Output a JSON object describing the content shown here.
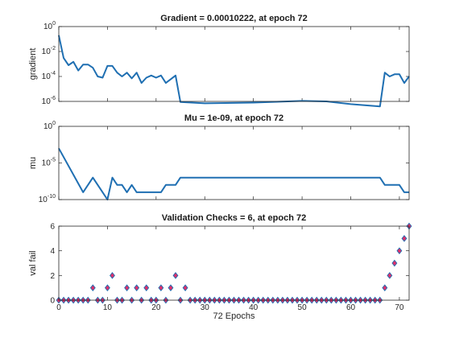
{
  "chart_data": [
    {
      "type": "line",
      "title": "Gradient = 0.00010222, at epoch 72",
      "xlabel": "",
      "ylabel": "gradient",
      "yscale": "log",
      "xlim": [
        0,
        72
      ],
      "ylim_exp": [
        -6,
        0
      ],
      "ytick_exponents": [
        0,
        -2,
        -4,
        -6
      ],
      "color": "#1f6fb2",
      "series": [
        {
          "x": [
            0,
            1,
            2,
            3,
            4,
            5,
            6,
            7,
            8,
            9,
            10,
            11,
            12,
            13,
            14,
            15,
            16,
            17,
            18,
            19,
            20,
            21,
            22,
            23,
            24,
            25,
            30,
            40,
            50,
            55,
            60,
            66,
            67,
            68,
            69,
            70,
            71,
            72
          ],
          "y": [
            0.2,
            0.003,
            0.0008,
            0.0015,
            0.0003,
            0.0009,
            0.0009,
            0.0005,
            0.0001,
            8e-05,
            0.0007,
            0.0007,
            0.0002,
            0.0001,
            0.0002,
            7e-05,
            0.0002,
            3e-05,
            8e-05,
            0.00012,
            8e-05,
            0.00012,
            3e-05,
            6e-05,
            0.00012,
            9e-07,
            7e-07,
            8e-07,
            1.1e-06,
            1e-06,
            6e-07,
            4e-07,
            0.0002,
            0.0001,
            0.00015,
            0.00015,
            3e-05,
            0.00010222
          ]
        }
      ]
    },
    {
      "type": "line",
      "title": "Mu = 1e-09, at epoch 72",
      "xlabel": "",
      "ylabel": "mu",
      "yscale": "log",
      "xlim": [
        0,
        72
      ],
      "ylim_exp": [
        -10,
        0
      ],
      "ytick_exponents": [
        0,
        -5,
        -10
      ],
      "color": "#1f6fb2",
      "series": [
        {
          "x": [
            0,
            5,
            7,
            10,
            11,
            12,
            13,
            14,
            15,
            16,
            17,
            18,
            19,
            20,
            21,
            22,
            23,
            24,
            25,
            30,
            40,
            50,
            60,
            65,
            66,
            67,
            68,
            69,
            70,
            71,
            72
          ],
          "y": [
            0.001,
            1e-09,
            1e-07,
            1e-10,
            1e-07,
            1e-08,
            1e-08,
            1e-09,
            1e-08,
            1e-09,
            1e-09,
            1e-09,
            1e-09,
            1e-09,
            1e-09,
            1e-08,
            1e-08,
            1e-08,
            1e-07,
            1e-07,
            1e-07,
            1e-07,
            1e-07,
            1e-07,
            1e-07,
            1e-08,
            1e-08,
            1e-08,
            1e-08,
            1e-09,
            1e-09
          ]
        }
      ]
    },
    {
      "type": "scatter",
      "title": "Validation Checks = 6, at epoch 72",
      "xlabel": "72 Epochs",
      "ylabel": "val fail",
      "xlim": [
        0,
        72
      ],
      "ylim": [
        0,
        6
      ],
      "xticks": [
        0,
        10,
        20,
        30,
        40,
        50,
        60,
        70
      ],
      "yticks": [
        0,
        2,
        4,
        6
      ],
      "marker": "diamond",
      "color": "#e0306a",
      "edge_color": "#1f6fb2",
      "series": [
        {
          "x": [
            0,
            1,
            2,
            3,
            4,
            5,
            6,
            7,
            8,
            9,
            10,
            11,
            12,
            13,
            14,
            15,
            16,
            17,
            18,
            19,
            20,
            21,
            22,
            23,
            24,
            25,
            26,
            27,
            28,
            29,
            30,
            31,
            32,
            33,
            34,
            35,
            36,
            37,
            38,
            39,
            40,
            41,
            42,
            43,
            44,
            45,
            46,
            47,
            48,
            49,
            50,
            51,
            52,
            53,
            54,
            55,
            56,
            57,
            58,
            59,
            60,
            61,
            62,
            63,
            64,
            65,
            66,
            67,
            68,
            69,
            70,
            71,
            72
          ],
          "y": [
            0,
            0,
            0,
            0,
            0,
            0,
            0,
            1,
            0,
            0,
            1,
            2,
            0,
            0,
            1,
            0,
            1,
            0,
            1,
            0,
            0,
            1,
            0,
            1,
            2,
            0,
            1,
            0,
            0,
            0,
            0,
            0,
            0,
            0,
            0,
            0,
            0,
            0,
            0,
            0,
            0,
            0,
            0,
            0,
            0,
            0,
            0,
            0,
            0,
            0,
            0,
            0,
            0,
            0,
            0,
            0,
            0,
            0,
            0,
            0,
            0,
            0,
            0,
            0,
            0,
            0,
            0,
            1,
            2,
            3,
            4,
            5,
            6
          ]
        }
      ]
    }
  ]
}
